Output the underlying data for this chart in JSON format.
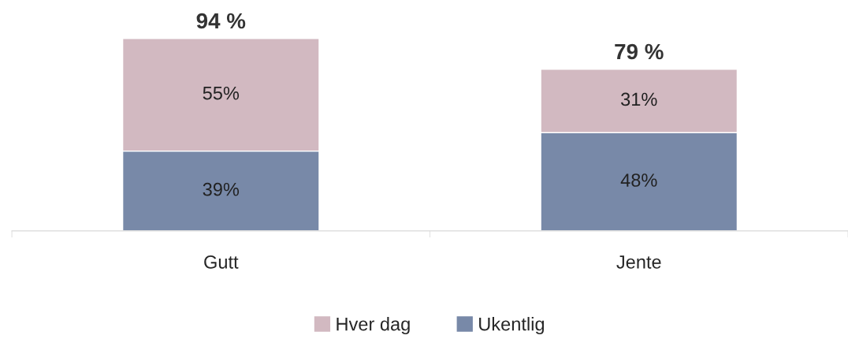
{
  "chart_data": {
    "type": "bar",
    "stacked": true,
    "categories": [
      "Gutt",
      "Jente"
    ],
    "series": [
      {
        "name": "Ukentlig",
        "color": "#7889a8",
        "values": [
          39,
          48
        ],
        "value_labels": [
          "39%",
          "48%"
        ]
      },
      {
        "name": "Hver dag",
        "color": "#d2b9c1",
        "values": [
          55,
          31
        ],
        "value_labels": [
          "55%",
          "31%"
        ]
      }
    ],
    "totals": [
      "94 %",
      "79 %"
    ],
    "legend": "bottom",
    "grid": false
  }
}
